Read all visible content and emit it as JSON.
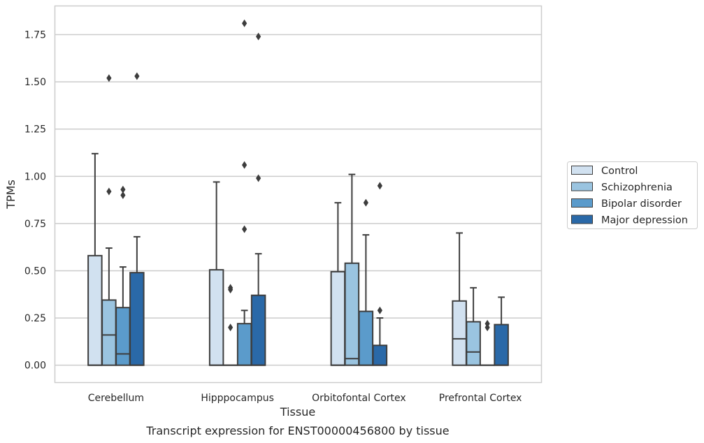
{
  "chart_data": {
    "type": "boxplot",
    "caption": "Transcript expression for ENST00000456800 by tissue",
    "xlabel": "Tissue",
    "ylabel": "TPMs",
    "ylim": [
      -0.09,
      1.9
    ],
    "yticks": [
      "0.00",
      "0.25",
      "0.50",
      "0.75",
      "1.00",
      "1.25",
      "1.50",
      "1.75"
    ],
    "grid": "horizontal",
    "legend_position": "right",
    "categories": [
      "Cerebellum",
      "Hipppocampus",
      "Orbitofontal Cortex",
      "Prefrontal Cortex"
    ],
    "series": [
      {
        "name": "Control",
        "color": "#d1e1f0",
        "boxes": [
          {
            "min": 0,
            "q1": 0,
            "median": 0,
            "q3": 0.58,
            "max": 1.12,
            "outliers": []
          },
          {
            "min": 0,
            "q1": 0,
            "median": 0,
            "q3": 0.505,
            "max": 0.97,
            "outliers": []
          },
          {
            "min": 0,
            "q1": 0,
            "median": 0,
            "q3": 0.495,
            "max": 0.86,
            "outliers": []
          },
          {
            "min": 0,
            "q1": 0,
            "median": 0.14,
            "q3": 0.34,
            "max": 0.7,
            "outliers": []
          }
        ]
      },
      {
        "name": "Schizophrenia",
        "color": "#9ac4e0",
        "boxes": [
          {
            "min": 0,
            "q1": 0,
            "median": 0.16,
            "q3": 0.345,
            "max": 0.62,
            "outliers": [
              0.92,
              1.52
            ]
          },
          {
            "min": 0,
            "q1": 0,
            "median": 0,
            "q3": 0,
            "max": 0,
            "outliers": [
              0.2,
              0.4,
              0.41
            ]
          },
          {
            "min": 0,
            "q1": 0,
            "median": 0.035,
            "q3": 0.54,
            "max": 1.01,
            "outliers": []
          },
          {
            "min": 0,
            "q1": 0,
            "median": 0.07,
            "q3": 0.23,
            "max": 0.41,
            "outliers": []
          }
        ]
      },
      {
        "name": "Bipolar disorder",
        "color": "#5b9bcb",
        "boxes": [
          {
            "min": 0,
            "q1": 0,
            "median": 0.06,
            "q3": 0.305,
            "max": 0.52,
            "outliers": [
              0.9,
              0.93
            ]
          },
          {
            "min": 0,
            "q1": 0,
            "median": 0,
            "q3": 0.22,
            "max": 0.29,
            "outliers": [
              0.72,
              1.06,
              1.81
            ]
          },
          {
            "min": 0,
            "q1": 0,
            "median": 0,
            "q3": 0.285,
            "max": 0.69,
            "outliers": [
              0.86
            ]
          },
          {
            "min": 0,
            "q1": 0,
            "median": 0,
            "q3": 0,
            "max": 0,
            "outliers": [
              0.2,
              0.22
            ]
          }
        ]
      },
      {
        "name": "Major depression",
        "color": "#2a69a8",
        "boxes": [
          {
            "min": 0,
            "q1": 0,
            "median": 0,
            "q3": 0.49,
            "max": 0.68,
            "outliers": [
              1.53
            ]
          },
          {
            "min": 0,
            "q1": 0,
            "median": 0,
            "q3": 0.37,
            "max": 0.59,
            "outliers": [
              0.99,
              1.74
            ]
          },
          {
            "min": 0,
            "q1": 0,
            "median": 0,
            "q3": 0.105,
            "max": 0.25,
            "outliers": [
              0.29,
              0.95
            ]
          },
          {
            "min": 0,
            "q1": 0,
            "median": 0,
            "q3": 0.215,
            "max": 0.36,
            "outliers": []
          }
        ]
      }
    ],
    "colors": {
      "line": "#3d3d3d",
      "grid": "#cccccc",
      "frame": "#cccccc"
    }
  }
}
